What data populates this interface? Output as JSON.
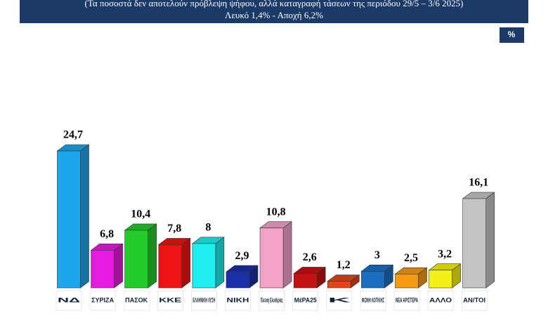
{
  "chart_data": {
    "type": "bar3d",
    "subtitle": "(Τα ποσοστά δεν αποτελούν πρόβλεψη ψήφου, αλλά καταγραφή τάσεων της περιόδου  29/5 – 3/6 2025)",
    "note": "Λευκό 1,4% - Αποχή 6,2%",
    "unit": "%",
    "categories": [
      "ΝΔ",
      "ΣΥΡΙΖΑ",
      "ΠΑΣΟΚ",
      "ΚΚΕ",
      "ΕΛΛΗΝΙΚΗ ΛΥΣΗ",
      "ΝΙΚΗ",
      "Πλεύση Ελευθερίας",
      "ΜέΡΑ25",
      "Κ",
      "ΦΩΝΗ ΛΟΓΙΚΗΣ",
      "ΝΕΑ ΑΡΙΣΤΕΡΑ",
      "ΑΛΛΟ",
      "ΑΝ/ΤΟΙ"
    ],
    "values": [
      24.7,
      6.8,
      10.4,
      7.8,
      8,
      2.9,
      10.8,
      2.6,
      1.2,
      3,
      2.5,
      3.2,
      16.1
    ],
    "value_labels": [
      "24,7",
      "6,8",
      "10,4",
      "7,8",
      "8",
      "2,9",
      "10,8",
      "2,6",
      "1,2",
      "3",
      "2,5",
      "3,2",
      "16,1"
    ],
    "colors": [
      "#1ea6ec",
      "#e61be0",
      "#22cc2a",
      "#ee1414",
      "#1eeeee",
      "#1a2fa8",
      "#f5a2c8",
      "#c21212",
      "#e0461a",
      "#1a6ec2",
      "#f59a12",
      "#f5f014",
      "#c4c4c4"
    ]
  }
}
